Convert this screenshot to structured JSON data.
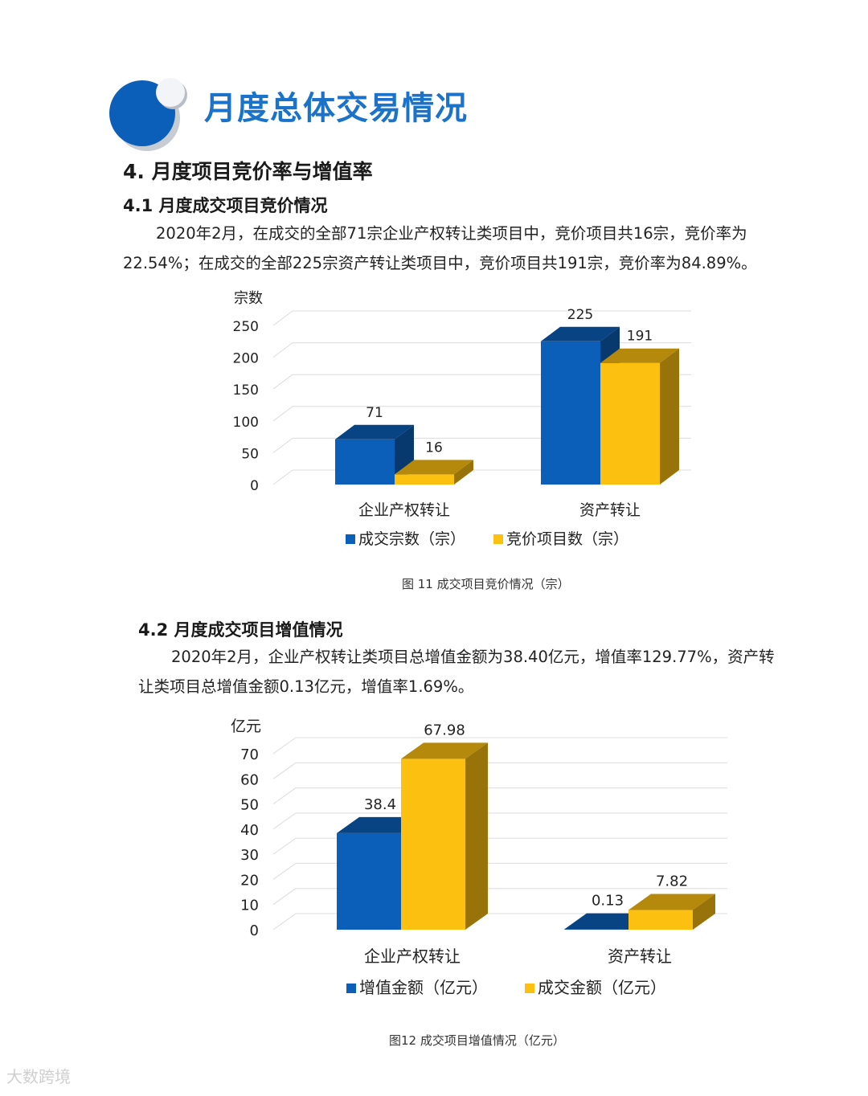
{
  "header": {
    "title": "月度总体交易情况"
  },
  "section": {
    "heading": "4. 月度项目竞价率与增值率"
  },
  "s41": {
    "heading": "4.1 月度成交项目竞价情况",
    "line1": "2020年2月，在成交的全部71宗企业产权转让类项目中，竞价项目共16宗，竞价率为",
    "line2": "22.54%；在成交的全部225宗资产转让类项目中，竞价项目共191宗，竞价率为84.89%。",
    "caption": "图 11 成交项目竞价情况（宗）"
  },
  "s42": {
    "heading": "4.2 月度成交项目增值情况",
    "line1": "2020年2月，企业产权转让类项目总增值金额为38.40亿元，增值率129.77%，资产转",
    "line2": "让类项目总增值金额0.13亿元，增值率1.69%。",
    "caption": "图12 成交项目增值情况（亿元）"
  },
  "chart_data": [
    {
      "type": "bar",
      "ylabel": "宗数",
      "ylim": [
        0,
        250
      ],
      "yticks": [
        "0",
        "50",
        "100",
        "150",
        "200",
        "250"
      ],
      "categories": [
        "企业产权转让",
        "资产转让"
      ],
      "series": [
        {
          "name": "成交宗数（宗）",
          "values": [
            71,
            225
          ],
          "labels": [
            "71",
            "225"
          ],
          "color": "#0b5fb8"
        },
        {
          "name": "竞价项目数（宗）",
          "values": [
            16,
            191
          ],
          "labels": [
            "16",
            "191"
          ],
          "color": "#fbc010"
        }
      ],
      "legend": "bottom",
      "grid": true,
      "style": "3d"
    },
    {
      "type": "bar",
      "ylabel": "亿元",
      "ylim": [
        0,
        70
      ],
      "yticks": [
        "0",
        "10",
        "20",
        "30",
        "40",
        "50",
        "60",
        "70"
      ],
      "categories": [
        "企业产权转让",
        "资产转让"
      ],
      "series": [
        {
          "name": "增值金额（亿元）",
          "values": [
            38.4,
            0.13
          ],
          "labels": [
            "38.4",
            "0.13"
          ],
          "color": "#0b5fb8"
        },
        {
          "name": "成交金额（亿元）",
          "values": [
            67.98,
            7.82
          ],
          "labels": [
            "67.98",
            "7.82"
          ],
          "color": "#fbc010"
        }
      ],
      "legend": "bottom",
      "grid": true,
      "style": "3d"
    }
  ],
  "watermark": "大数跨境"
}
